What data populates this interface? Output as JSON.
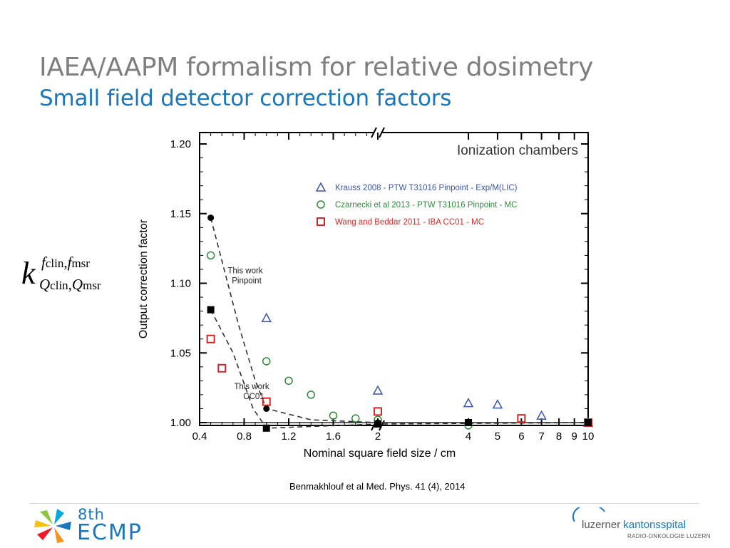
{
  "slide": {
    "title": "IAEA/AAPM formalism for relative dosimetry",
    "subtitle": "Small field detector correction factors",
    "citation": "Benmakhlouf et al Med. Phys. 41 (4), 2014"
  },
  "formula": {
    "base": "k",
    "sup_a": "f",
    "sup_a_sub": "clin",
    "sup_b": "f",
    "sup_b_sub": "msr",
    "sub_a": "Q",
    "sub_a_sub": "clin",
    "sub_b": "Q",
    "sub_b_sub": "msr",
    "separator": ","
  },
  "footer": {
    "left_logo": {
      "sup": "8th",
      "name": "ECMP"
    },
    "right_logo": {
      "name_part1": "luzerner",
      "name_part2": "kantonsspital",
      "tagline": "RADIO-ONKOLOGIE LUZERN"
    }
  },
  "chart_data": {
    "type": "scatter",
    "panel_title": "Ionization chambers",
    "xlabel": "Nominal square field size / cm",
    "ylabel": "Output correction factor",
    "ylim": [
      1.0,
      1.2
    ],
    "yticks": [
      1.0,
      1.05,
      1.1,
      1.15,
      1.2
    ],
    "ytick_labels": [
      "1.00",
      "1.05",
      "1.10",
      "1.15",
      "1.20"
    ],
    "x_broken_axis": true,
    "x_break_at": 2,
    "xticks_left": [
      0.4,
      0.8,
      1.2,
      1.6,
      2
    ],
    "xticks_left_labels": [
      "0.4",
      "0.8",
      "1.2",
      "1.6",
      "2"
    ],
    "xticks_right": [
      2,
      4,
      5,
      6,
      7,
      8,
      9,
      10
    ],
    "xticks_right_labels": [
      "2",
      "4",
      "5",
      "6",
      "7",
      "8",
      "9",
      "10"
    ],
    "legend_placement": "top-right",
    "reference_line": 1.0,
    "series": [
      {
        "name": "Krauss 2008 - PTW T31016 Pinpoint - Exp/M(LIC)",
        "marker": "triangle-open",
        "color": "#3b56a8",
        "points": [
          [
            1,
            1.075
          ],
          [
            2,
            1.023
          ],
          [
            4,
            1.014
          ],
          [
            5,
            1.013
          ],
          [
            7,
            1.005
          ],
          [
            10,
            1.0
          ]
        ]
      },
      {
        "name": "Czarnecki et al 2013 - PTW T31016 Pinpoint - MC",
        "marker": "circle-open",
        "color": "#2e8b3a",
        "points": [
          [
            0.5,
            1.12
          ],
          [
            1,
            1.044
          ],
          [
            1.2,
            1.03
          ],
          [
            1.4,
            1.02
          ],
          [
            1.6,
            1.005
          ],
          [
            1.8,
            1.003
          ],
          [
            2,
            1.002
          ],
          [
            4,
            0.998
          ]
        ]
      },
      {
        "name": "Wang and Beddar 2011 - IBA CC01 - MC",
        "marker": "square-open",
        "color": "#d62728",
        "points": [
          [
            0.5,
            1.06
          ],
          [
            0.6,
            1.039
          ],
          [
            1,
            1.015
          ],
          [
            2,
            1.008
          ],
          [
            6,
            1.003
          ],
          [
            10,
            1.0
          ]
        ]
      },
      {
        "label": "This work Pinpoint",
        "marker": "circle-filled",
        "color": "#000000",
        "points": [
          [
            0.5,
            1.147
          ],
          [
            1,
            1.01
          ],
          [
            2,
            1.0
          ],
          [
            4,
            1.0
          ],
          [
            10,
            1.0
          ]
        ]
      },
      {
        "label": "This work CC01",
        "marker": "square-filled",
        "color": "#000000",
        "points": [
          [
            0.5,
            1.081
          ],
          [
            1,
            0.996
          ],
          [
            2,
            0.999
          ],
          [
            4,
            1.0
          ],
          [
            10,
            1.0
          ]
        ]
      }
    ],
    "annotations": [
      {
        "text": "This work",
        "text2": "Pinpoint"
      },
      {
        "text": "This work",
        "text2": "CC01"
      }
    ]
  }
}
